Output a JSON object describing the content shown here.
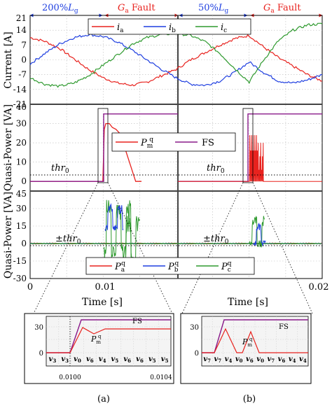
{
  "colors": {
    "phase_a": "#e8221e",
    "phase_b": "#1f3fe0",
    "phase_c": "#2f9a2f",
    "fs": "#8a1a8a",
    "threshold": "#000000",
    "annotation_left": "#1f3fe0",
    "annotation_right": "#e8221e"
  },
  "top_annotations": {
    "left_1": "200%L₉",
    "left_1_text": "200%",
    "left_1_sub": "g",
    "right_1": "Gₐ Fault",
    "right_1_main": "G",
    "right_1_sub": "a",
    "right_1_tail": " Fault",
    "left_2_text": "50%",
    "left_2_sub": "g",
    "right_2_main": "G",
    "right_2_sub": "a",
    "right_2_tail": " Fault"
  },
  "panel_current": {
    "ylabel": "Current [A]",
    "y_ticks": [
      "21",
      "14",
      "7",
      "0",
      "-7",
      "-14",
      "-21"
    ],
    "legend": [
      {
        "sym": "i",
        "sub": "a"
      },
      {
        "sym": "i",
        "sub": "b"
      },
      {
        "sym": "i",
        "sub": "c"
      }
    ]
  },
  "panel_power1": {
    "ylabel": "Quasi-Power [VA]",
    "y_ticks": [
      "40",
      "30",
      "20",
      "10",
      "0"
    ],
    "threshold_label": "thr",
    "threshold_sub": "0",
    "legend": [
      {
        "sym": "P",
        "sub": "m",
        "sup": "q"
      },
      {
        "sym": "FS"
      }
    ]
  },
  "panel_power2": {
    "ylabel": "Quasi-Power [VA]",
    "y_ticks": [
      "45",
      "30",
      "15",
      "0",
      "-15",
      "-30"
    ],
    "threshold_label": "±thr",
    "threshold_sub": "0",
    "legend": [
      {
        "sym": "P",
        "sub": "a",
        "sup": "q"
      },
      {
        "sym": "P",
        "sub": "b",
        "sup": "q"
      },
      {
        "sym": "P",
        "sub": "c",
        "sup": "q"
      }
    ]
  },
  "x_axis": {
    "ticks": [
      "0",
      "0.01",
      "0.02"
    ],
    "label": "Time [s]"
  },
  "inset_a": {
    "y_ticks": [
      "30",
      "0"
    ],
    "x_ticks": [
      "0.0100",
      "0.0104"
    ],
    "fs_label": "FS",
    "pm_label_sym": "P",
    "pm_label_sub": "m",
    "pm_label_sup": "q",
    "vectors": [
      "v₃",
      "v₃",
      "v₀",
      "v₆",
      "v₄",
      "v₅",
      "v₆",
      "v₆",
      "v₅",
      "v₅"
    ],
    "vector_subs": [
      "3",
      "3",
      "0",
      "6",
      "4",
      "5",
      "6",
      "6",
      "5",
      "5"
    ],
    "caption": "(a)"
  },
  "inset_b": {
    "y_ticks": [
      "30",
      "0"
    ],
    "fs_label": "FS",
    "pm_label_sym": "P",
    "pm_label_sub": "m",
    "pm_label_sup": "q",
    "vector_subs": [
      "7",
      "7",
      "4",
      "0",
      "6",
      "0",
      "7",
      "6",
      "4",
      "4"
    ],
    "caption": "(b)"
  },
  "chart_data": [
    {
      "type": "line",
      "title": "",
      "xlabel": "Time [s]",
      "ylabel": "Current [A]",
      "xlim": [
        0,
        0.02
      ],
      "ylim": [
        -21,
        21
      ],
      "annotations": [
        "200%Lg",
        "Ga Fault",
        "50%Lg",
        "Ga Fault"
      ],
      "series": [
        {
          "name": "ia",
          "x": [
            0,
            0.001,
            0.002,
            0.003,
            0.004,
            0.005,
            0.006,
            0.007,
            0.008,
            0.009,
            0.01,
            0.011,
            0.012,
            0.013,
            0.014,
            0.015,
            0.016,
            0.017,
            0.018,
            0.019,
            0.02
          ],
          "values": [
            10.5,
            8.8,
            5.5,
            0.5,
            -4.5,
            -8.5,
            -11,
            -12,
            -10.5,
            -7.5,
            -4.5,
            0,
            3.5,
            7,
            10,
            11.5,
            6,
            1,
            -3,
            -7,
            -10
          ]
        },
        {
          "name": "ib",
          "x": [
            0,
            0.001,
            0.002,
            0.003,
            0.004,
            0.005,
            0.006,
            0.007,
            0.008,
            0.009,
            0.01,
            0.011,
            0.012,
            0.013,
            0.014,
            0.015,
            0.016,
            0.017,
            0.018,
            0.019,
            0.02
          ],
          "values": [
            -2,
            3,
            7.5,
            10.5,
            12,
            11,
            8.5,
            4.5,
            0,
            -4.5,
            -8.5,
            -11.5,
            -12,
            -10,
            -6,
            -1,
            -6,
            -10,
            -11,
            -9.5,
            -7
          ]
        },
        {
          "name": "ic",
          "x": [
            0,
            0.001,
            0.002,
            0.003,
            0.004,
            0.005,
            0.006,
            0.007,
            0.008,
            0.009,
            0.01,
            0.011,
            0.012,
            0.013,
            0.014,
            0.015,
            0.016,
            0.017,
            0.018,
            0.019,
            0.02
          ],
          "values": [
            -8.5,
            -11.5,
            -12.5,
            -11,
            -7.5,
            -2.5,
            2.5,
            7.5,
            10.5,
            12,
            12.5,
            11.5,
            8.5,
            3,
            -4,
            -10.5,
            0,
            9,
            14,
            16.5,
            17
          ]
        }
      ]
    },
    {
      "type": "line",
      "title": "",
      "xlabel": "Time [s]",
      "ylabel": "Quasi-Power [VA]",
      "xlim": [
        0,
        0.02
      ],
      "ylim": [
        -5,
        40
      ],
      "threshold": {
        "label": "thr0",
        "value": 0
      },
      "series": [
        {
          "name": "Pmq",
          "x": [
            0,
            0.0098,
            0.01,
            0.0102,
            0.0105,
            0.011,
            0.012,
            0.013,
            0.0135,
            0.014,
            0.0145,
            0.015,
            0.0155,
            0.016,
            0.0175,
            0.0195,
            0.02
          ],
          "values": [
            0,
            0,
            0,
            27,
            30,
            30,
            29.5,
            27,
            25,
            21,
            14,
            0,
            0,
            0,
            0,
            0,
            0
          ]
        },
        {
          "name": "FS",
          "x": [
            0,
            0.0098,
            0.0099,
            0.01,
            0.015,
            0.0155,
            0.02
          ],
          "values": [
            0,
            0,
            35,
            35,
            35,
            35,
            35
          ]
        }
      ]
    },
    {
      "type": "line",
      "title": "",
      "xlabel": "Time [s]",
      "ylabel": "Quasi-Power [VA]",
      "xlim": [
        0,
        0.02
      ],
      "ylim": [
        -30,
        45
      ],
      "threshold": {
        "label": "±thr0",
        "value": 0
      },
      "series": [
        {
          "name": "Paq",
          "note": "near zero with oscillation bursts after 0.01 s"
        },
        {
          "name": "Pbq",
          "note": "near zero with oscillation bursts after 0.01 s"
        },
        {
          "name": "Pcq",
          "note": "large oscillation between -30 and 45 after 0.01 s"
        }
      ]
    }
  ]
}
